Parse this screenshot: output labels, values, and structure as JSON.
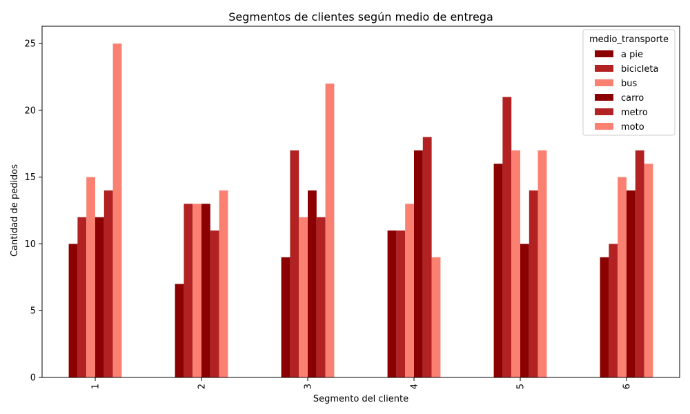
{
  "chart_data": {
    "type": "bar",
    "title": "Segmentos de clientes según medio de entrega",
    "xlabel": "Segmento del cliente",
    "ylabel": "Cantidad de pedidos",
    "categories": [
      "1",
      "2",
      "3",
      "4",
      "5",
      "6"
    ],
    "ylim": [
      0,
      26.3
    ],
    "yticks": [
      0,
      5,
      10,
      15,
      20,
      25
    ],
    "grid": false,
    "legend_title": "medio_transporte",
    "legend_position": "top-right",
    "series": [
      {
        "name": "a pie",
        "color": "#8b0000",
        "values": [
          10,
          7,
          9,
          11,
          16,
          9
        ]
      },
      {
        "name": "bicicleta",
        "color": "#b22222",
        "values": [
          12,
          13,
          17,
          11,
          21,
          10
        ]
      },
      {
        "name": "bus",
        "color": "#fa8072",
        "values": [
          15,
          13,
          12,
          13,
          17,
          15
        ]
      },
      {
        "name": "carro",
        "color": "#8b0000",
        "values": [
          12,
          13,
          14,
          17,
          10,
          14
        ]
      },
      {
        "name": "metro",
        "color": "#b22222",
        "values": [
          14,
          11,
          12,
          18,
          14,
          17
        ]
      },
      {
        "name": "moto",
        "color": "#fa8072",
        "values": [
          25,
          14,
          22,
          9,
          17,
          16
        ]
      }
    ]
  }
}
